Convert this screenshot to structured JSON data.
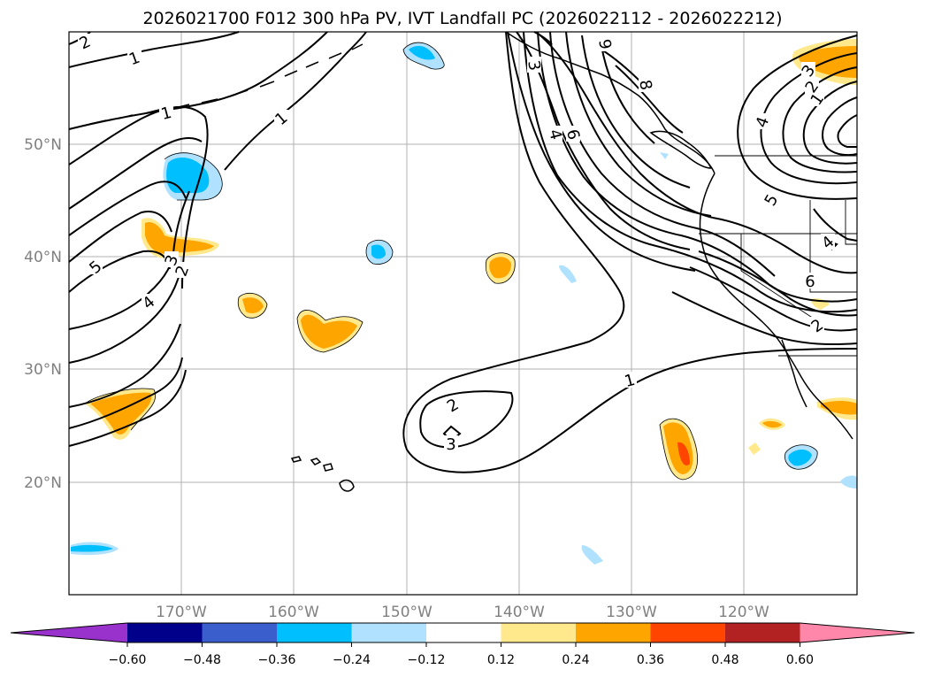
{
  "title": "2026021700 F012 300 hPa PV, IVT Landfall PC (2026022112 - 2026022212)",
  "longitude_labels": [
    "170°W",
    "160°W",
    "150°W",
    "140°W",
    "130°W",
    "120°W"
  ],
  "latitude_labels": [
    "50°N",
    "40°N",
    "30°N",
    "20°N"
  ],
  "contour_labels": {
    "nw_2": "2",
    "nw_1a": "1",
    "nw_1b": "1",
    "nw_1c": "1",
    "w_5": "5",
    "w_4": "4",
    "w_3": "3",
    "w_2": "2",
    "n_3": "3",
    "n_9": "9",
    "n_8": "8",
    "n_4": "4",
    "n_6": "6",
    "ne_3": "3",
    "ne_2": "2",
    "ne_1": "1",
    "ne_4": "4",
    "e_5": "5",
    "e_4": "4",
    "e_6": "6",
    "e_2": "2",
    "s_1": "1",
    "s_2": "2",
    "s_3": "3"
  },
  "colorbar": {
    "ticks": [
      "−0.60",
      "−0.48",
      "−0.36",
      "−0.24",
      "−0.12",
      "0.12",
      "0.24",
      "0.36",
      "0.48",
      "0.60"
    ],
    "colors": [
      "#9932cc",
      "#00008b",
      "#3a5fcd",
      "#00bfff",
      "#b0e2ff",
      "#ffffff",
      "#ffe98c",
      "#ffa500",
      "#ff4500",
      "#b22222",
      "#ff88aa"
    ]
  },
  "colors": {
    "neg_light": "#b0e2ff",
    "neg_mid": "#00bfff",
    "pos_light": "#ffe98c",
    "pos_mid": "#ffa500",
    "pos_strong": "#ff4500",
    "grid": "#b0b0b0"
  }
}
